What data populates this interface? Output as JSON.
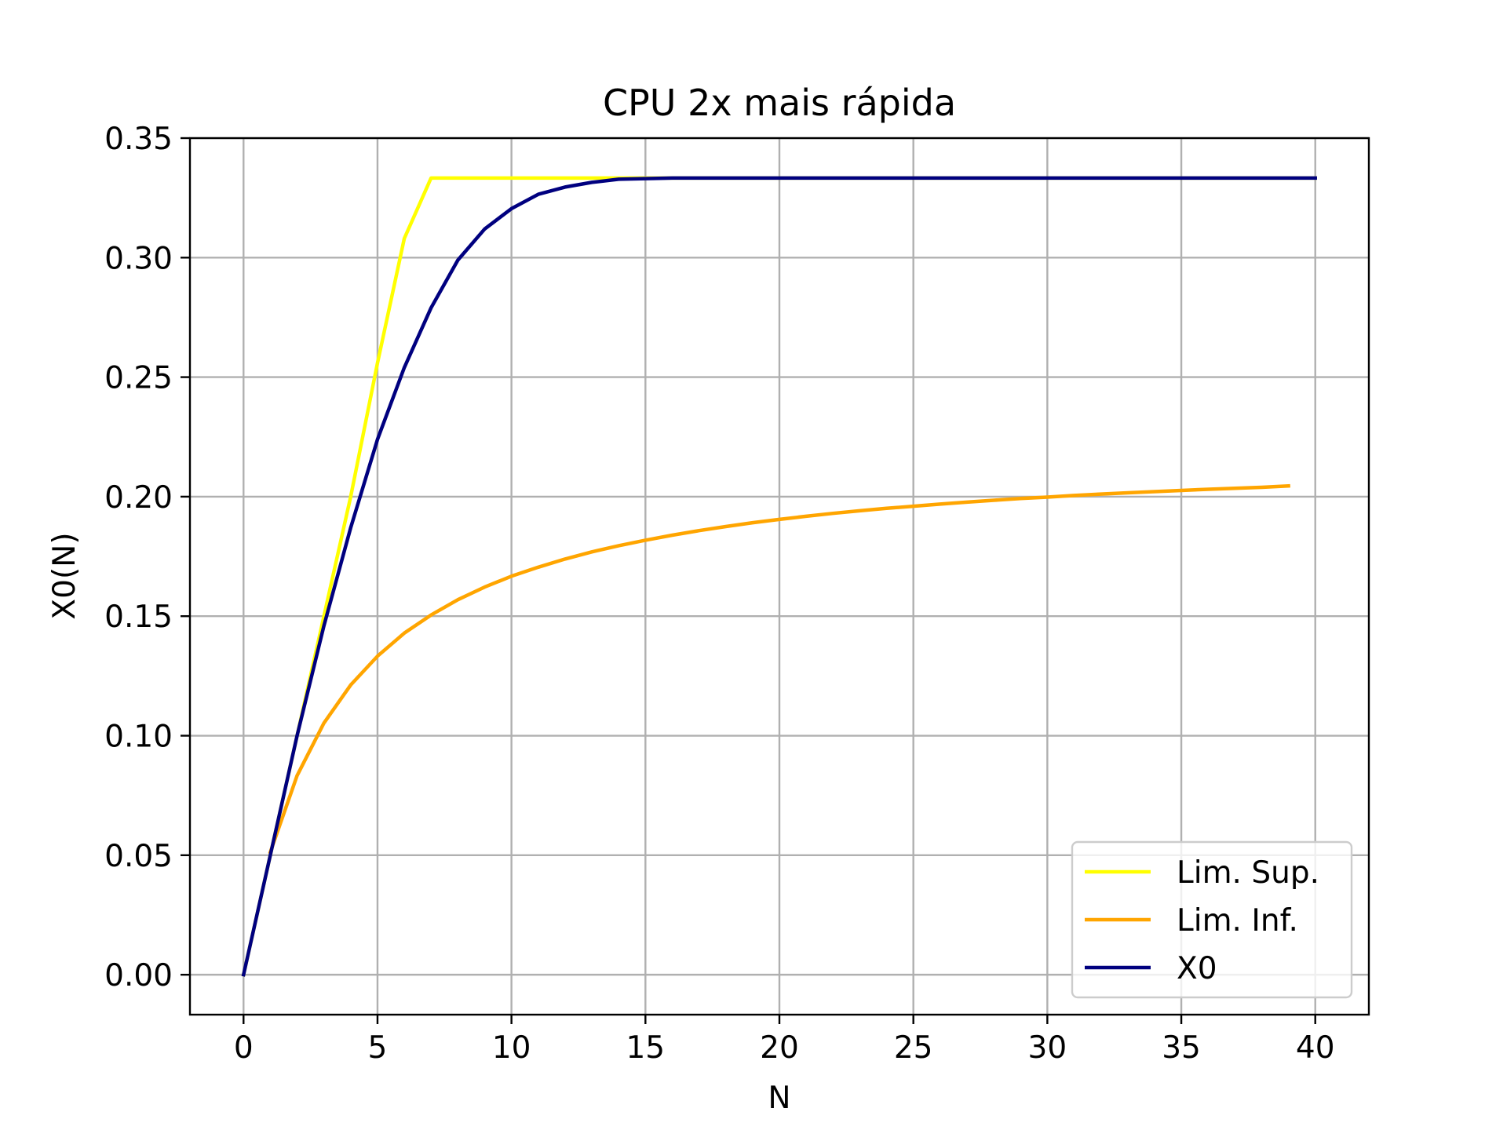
{
  "chart_data": {
    "type": "line",
    "title": "CPU 2x mais rápida",
    "xlabel": "N",
    "ylabel": "X0(N)",
    "xlim": [
      -2,
      42
    ],
    "ylim": [
      -0.0167,
      0.35
    ],
    "xticks": [
      0,
      5,
      10,
      15,
      20,
      25,
      30,
      35,
      40
    ],
    "xtick_labels": [
      "0",
      "5",
      "10",
      "15",
      "20",
      "25",
      "30",
      "35",
      "40"
    ],
    "yticks": [
      0.0,
      0.05,
      0.1,
      0.15,
      0.2,
      0.25,
      0.3,
      0.35
    ],
    "ytick_labels": [
      "0.00",
      "0.05",
      "0.10",
      "0.15",
      "0.20",
      "0.25",
      "0.30",
      "0.35"
    ],
    "grid": true,
    "legend_position": "lower-right",
    "series": [
      {
        "name": "Lim. Sup.",
        "color": "#ffff00",
        "x": [
          0,
          1,
          2,
          3,
          4,
          5,
          6,
          7,
          10,
          15,
          20,
          25,
          30,
          35,
          40
        ],
        "y": [
          0.0,
          0.05,
          0.1,
          0.15,
          0.2,
          0.256,
          0.308,
          0.3333,
          0.3333,
          0.3333,
          0.3333,
          0.3333,
          0.3333,
          0.3333,
          0.3333
        ]
      },
      {
        "name": "Lim. Inf.",
        "color": "#ffa500",
        "x": [
          1,
          2,
          3,
          4,
          5,
          6,
          7,
          8,
          9,
          10,
          11,
          12,
          13,
          14,
          15,
          16,
          17,
          18,
          19,
          20,
          21,
          22,
          23,
          24,
          25,
          26,
          27,
          28,
          29,
          30,
          31,
          32,
          33,
          34,
          35,
          36,
          37,
          38,
          39
        ],
        "y": [
          0.0513,
          0.0833,
          0.1053,
          0.1212,
          0.1333,
          0.1429,
          0.1505,
          0.1569,
          0.1622,
          0.1667,
          0.1705,
          0.1739,
          0.1769,
          0.1795,
          0.1818,
          0.1839,
          0.1858,
          0.1875,
          0.1891,
          0.1905,
          0.1918,
          0.193,
          0.1941,
          0.1951,
          0.196,
          0.1969,
          0.1977,
          0.1985,
          0.1992,
          0.1998,
          0.2005,
          0.2011,
          0.2016,
          0.2021,
          0.2026,
          0.2031,
          0.2035,
          0.2039,
          0.2045
        ]
      },
      {
        "name": "X0",
        "color": "#00007f",
        "x": [
          0,
          1,
          2,
          3,
          4,
          5,
          6,
          7,
          8,
          9,
          10,
          11,
          12,
          13,
          14,
          16,
          20,
          25,
          30,
          35,
          40
        ],
        "y": [
          0.0,
          0.05,
          0.1,
          0.146,
          0.187,
          0.224,
          0.254,
          0.279,
          0.299,
          0.312,
          0.3205,
          0.3265,
          0.3295,
          0.3315,
          0.3328,
          0.3333,
          0.3333,
          0.3333,
          0.3333,
          0.3333,
          0.3333
        ]
      }
    ]
  }
}
